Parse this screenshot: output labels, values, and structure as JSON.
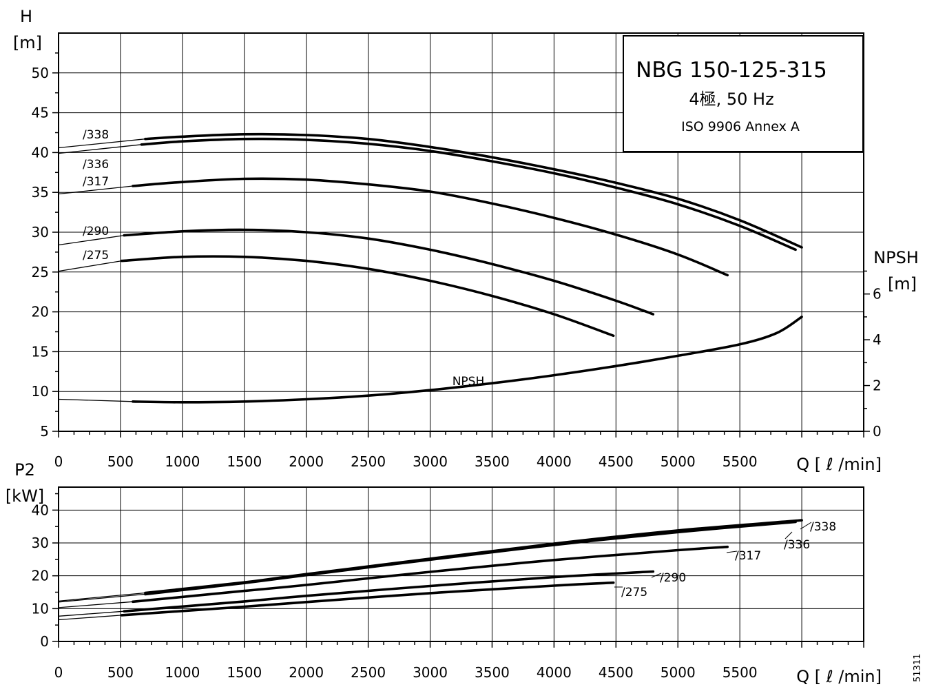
{
  "head_chart": {
    "model": "NBG 150-125-315",
    "subtitle": "4極, 50 Hz",
    "standard": "ISO 9906 Annex A",
    "y_label_1": "H",
    "y_label_2": "[m]",
    "y2_label_1": "NPSH",
    "y2_label_2": "[m]",
    "x_label": "Q [ ℓ /min]",
    "npsh_curve_label": "NPSH"
  },
  "power_chart": {
    "y_label_1": "P2",
    "y_label_2": "[kW]",
    "x_label": "Q [ ℓ /min]"
  },
  "side_code": "51311",
  "chart_data": [
    {
      "type": "line",
      "title": "NBG 150-125-315",
      "xlabel": "Q [ ℓ /min]",
      "ylabel": "H [m]",
      "y2label": "NPSH [m]",
      "xlim": [
        0,
        6500
      ],
      "ylim": [
        5,
        55
      ],
      "y2lim": [
        0,
        17.4
      ],
      "xticks": [
        0,
        500,
        1000,
        1500,
        2000,
        2500,
        3000,
        3500,
        4000,
        4500,
        5000,
        5500
      ],
      "yticks": [
        5,
        10,
        15,
        20,
        25,
        30,
        35,
        40,
        45,
        50
      ],
      "y2ticks": [
        0,
        2,
        4,
        6
      ],
      "grid": true,
      "series": [
        {
          "name": "/338",
          "axis": "H",
          "x": [
            0,
            700,
            1000,
            1500,
            2000,
            2500,
            3000,
            3500,
            4000,
            4500,
            5000,
            5500,
            6000
          ],
          "y": [
            40.6,
            41.7,
            42.0,
            42.3,
            42.2,
            41.7,
            40.7,
            39.4,
            37.9,
            36.2,
            34.2,
            31.5,
            28.1
          ]
        },
        {
          "name": "/336",
          "axis": "H",
          "x": [
            0,
            670,
            1000,
            1500,
            2000,
            2500,
            3000,
            3500,
            4000,
            4500,
            5000,
            5500,
            5950
          ],
          "y": [
            39.9,
            41.0,
            41.4,
            41.7,
            41.6,
            41.1,
            40.2,
            38.9,
            37.4,
            35.6,
            33.5,
            30.8,
            27.8
          ]
        },
        {
          "name": "/317",
          "axis": "H",
          "x": [
            0,
            600,
            1000,
            1500,
            2000,
            2500,
            3000,
            3500,
            4000,
            4500,
            5000,
            5400
          ],
          "y": [
            34.8,
            35.8,
            36.3,
            36.7,
            36.6,
            36.0,
            35.1,
            33.6,
            31.8,
            29.7,
            27.2,
            24.6
          ]
        },
        {
          "name": "/290",
          "axis": "H",
          "x": [
            0,
            530,
            1000,
            1500,
            2000,
            2500,
            3000,
            3500,
            4000,
            4500,
            4800
          ],
          "y": [
            28.4,
            29.6,
            30.1,
            30.3,
            30.0,
            29.2,
            27.8,
            26.0,
            23.9,
            21.4,
            19.7
          ]
        },
        {
          "name": "/275",
          "axis": "H",
          "x": [
            0,
            510,
            1000,
            1500,
            2000,
            2500,
            3000,
            3500,
            4000,
            4480
          ],
          "y": [
            25.1,
            26.4,
            26.9,
            26.9,
            26.4,
            25.4,
            23.9,
            22.0,
            19.7,
            17.0
          ]
        },
        {
          "name": "NPSH",
          "axis": "NPSH",
          "x": [
            0,
            600,
            1000,
            1500,
            2000,
            2500,
            3000,
            3500,
            4000,
            4500,
            5000,
            5500,
            5800,
            6000
          ],
          "y": [
            1.4,
            1.3,
            1.27,
            1.3,
            1.4,
            1.56,
            1.8,
            2.1,
            2.45,
            2.85,
            3.3,
            3.8,
            4.3,
            5.0
          ]
        }
      ]
    },
    {
      "type": "line",
      "xlabel": "Q [ ℓ /min]",
      "ylabel": "P2 [kW]",
      "xlim": [
        0,
        6500
      ],
      "ylim": [
        0,
        47
      ],
      "xticks": [
        0,
        500,
        1000,
        1500,
        2000,
        2500,
        3000,
        3500,
        4000,
        4500,
        5000,
        5500
      ],
      "yticks": [
        0,
        10,
        20,
        30,
        40
      ],
      "grid": true,
      "series": [
        {
          "name": "/338",
          "x": [
            0,
            700,
            1500,
            2000,
            3000,
            4000,
            5000,
            6000
          ],
          "y": [
            12.3,
            14.8,
            18.0,
            20.5,
            25.2,
            29.8,
            33.8,
            36.9
          ]
        },
        {
          "name": "/336",
          "x": [
            0,
            700,
            1500,
            2000,
            3000,
            4000,
            5000,
            5950
          ],
          "y": [
            12.0,
            14.4,
            17.8,
            20.2,
            24.9,
            29.4,
            33.3,
            36.4
          ]
        },
        {
          "name": "/317",
          "x": [
            0,
            600,
            1500,
            2000,
            3000,
            4000,
            5000,
            5400
          ],
          "y": [
            10.3,
            12.1,
            15.4,
            17.2,
            21.2,
            24.8,
            27.8,
            28.8
          ]
        },
        {
          "name": "/290",
          "x": [
            0,
            530,
            1500,
            2000,
            3000,
            4000,
            4800
          ],
          "y": [
            7.7,
            9.2,
            12.2,
            13.9,
            16.9,
            19.6,
            21.3
          ]
        },
        {
          "name": "/275",
          "x": [
            0,
            510,
            1500,
            2000,
            3000,
            4000,
            4480
          ],
          "y": [
            6.6,
            8.0,
            10.6,
            12.0,
            14.7,
            17.0,
            17.9
          ]
        }
      ]
    }
  ]
}
